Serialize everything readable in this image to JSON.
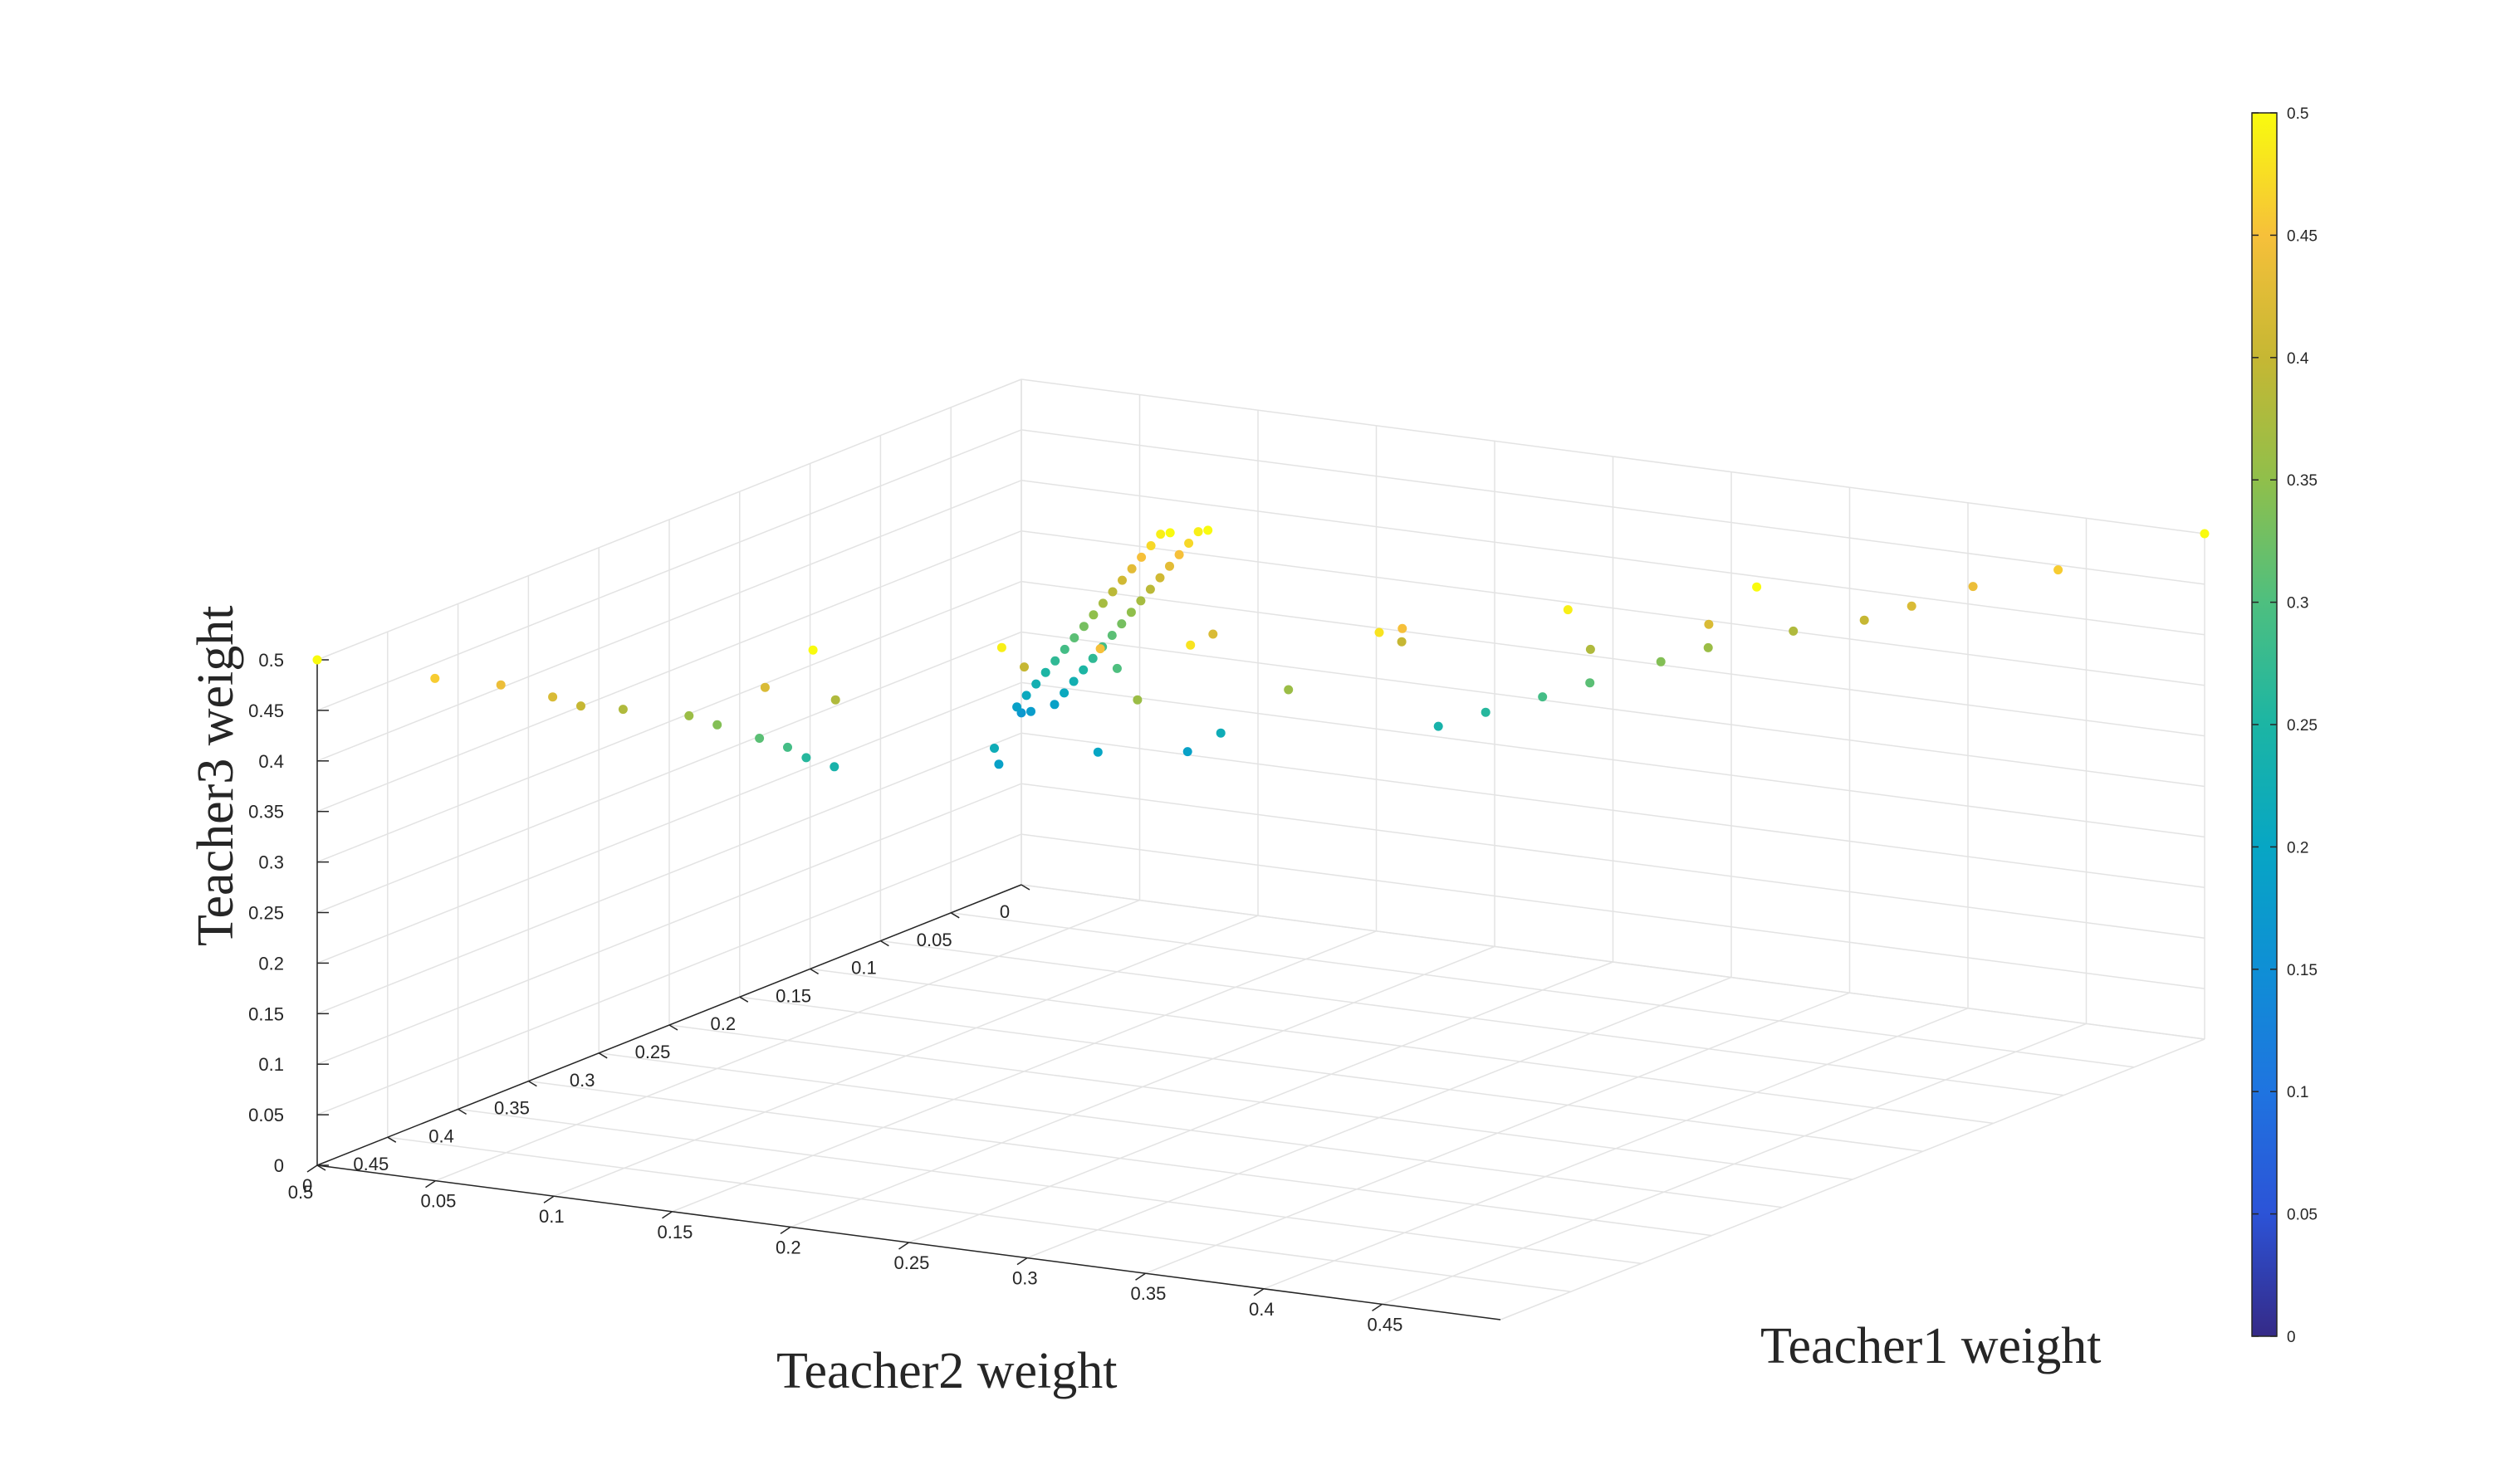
{
  "chart_data": {
    "type": "scatter3d",
    "title": "",
    "axes": {
      "x": {
        "label": "Teacher1 weight",
        "range": [
          0,
          0.5
        ],
        "ticks": [
          "0",
          "0.05",
          "0.1",
          "0.15",
          "0.2",
          "0.25",
          "0.3",
          "0.35",
          "0.4",
          "0.45"
        ]
      },
      "y": {
        "label": "Teacher2 weight",
        "range": [
          0,
          0.5
        ],
        "ticks": [
          "0",
          "0.05",
          "0.1",
          "0.15",
          "0.2",
          "0.25",
          "0.3",
          "0.35",
          "0.4",
          "0.45",
          "0.5"
        ]
      },
      "z": {
        "label": "Teacher3 weight",
        "range": [
          0,
          0.5
        ],
        "ticks": [
          "0",
          "0.05",
          "0.1",
          "0.15",
          "0.2",
          "0.25",
          "0.3",
          "0.35",
          "0.4",
          "0.45",
          "0.5"
        ]
      }
    },
    "grid": true,
    "colormap": "parula",
    "colorbar": {
      "placement": "right",
      "range": [
        0,
        0.5
      ],
      "ticks": [
        "0",
        "0.05",
        "0.1",
        "0.15",
        "0.2",
        "0.25",
        "0.3",
        "0.35",
        "0.4",
        "0.45",
        "0.5"
      ]
    },
    "series": [
      {
        "points": [
          [
            0.5,
            0,
            0.5
          ],
          [
            0,
            0.5,
            0.5
          ],
          [
            0,
            0,
            0.17
          ],
          [
            0.01,
            0.01,
            0.18
          ],
          [
            0.02,
            0.01,
            0.19
          ],
          [
            0.01,
            0.02,
            0.19
          ],
          [
            0.03,
            0.02,
            0.21
          ],
          [
            0.02,
            0.03,
            0.21
          ],
          [
            0.04,
            0.03,
            0.23
          ],
          [
            0.03,
            0.04,
            0.23
          ],
          [
            0.05,
            0.04,
            0.25
          ],
          [
            0.04,
            0.05,
            0.25
          ],
          [
            0.06,
            0.05,
            0.27
          ],
          [
            0.05,
            0.06,
            0.27
          ],
          [
            0.07,
            0.06,
            0.29
          ],
          [
            0.06,
            0.07,
            0.29
          ],
          [
            0.08,
            0.07,
            0.31
          ],
          [
            0.07,
            0.08,
            0.31
          ],
          [
            0.09,
            0.08,
            0.33
          ],
          [
            0.08,
            0.09,
            0.33
          ],
          [
            0.1,
            0.09,
            0.35
          ],
          [
            0.09,
            0.1,
            0.35
          ],
          [
            0.11,
            0.1,
            0.37
          ],
          [
            0.1,
            0.11,
            0.37
          ],
          [
            0.12,
            0.11,
            0.39
          ],
          [
            0.11,
            0.12,
            0.39
          ],
          [
            0.13,
            0.12,
            0.41
          ],
          [
            0.12,
            0.13,
            0.41
          ],
          [
            0.14,
            0.13,
            0.43
          ],
          [
            0.13,
            0.14,
            0.43
          ],
          [
            0.15,
            0.14,
            0.45
          ],
          [
            0.14,
            0.15,
            0.45
          ],
          [
            0.16,
            0.15,
            0.47
          ],
          [
            0.15,
            0.16,
            0.47
          ],
          [
            0.17,
            0.16,
            0.49
          ],
          [
            0.16,
            0.17,
            0.49
          ],
          [
            0.18,
            0.17,
            0.5
          ],
          [
            0.17,
            0.18,
            0.5
          ],
          [
            0.45,
            0.02,
            0.46
          ],
          [
            0.02,
            0.45,
            0.46
          ],
          [
            0.42,
            0.03,
            0.44
          ],
          [
            0.03,
            0.42,
            0.44
          ],
          [
            0.4,
            0.04,
            0.42
          ],
          [
            0.04,
            0.4,
            0.42
          ],
          [
            0.38,
            0.04,
            0.4
          ],
          [
            0.04,
            0.38,
            0.4
          ],
          [
            0.35,
            0.04,
            0.38
          ],
          [
            0.04,
            0.35,
            0.38
          ],
          [
            0.32,
            0.05,
            0.36
          ],
          [
            0.05,
            0.32,
            0.36
          ],
          [
            0.3,
            0.05,
            0.34
          ],
          [
            0.05,
            0.3,
            0.34
          ],
          [
            0.27,
            0.05,
            0.31
          ],
          [
            0.05,
            0.27,
            0.31
          ],
          [
            0.25,
            0.05,
            0.29
          ],
          [
            0.05,
            0.25,
            0.29
          ],
          [
            0.22,
            0.04,
            0.26
          ],
          [
            0.04,
            0.22,
            0.26
          ],
          [
            0.2,
            0.04,
            0.24
          ],
          [
            0.04,
            0.2,
            0.24
          ],
          [
            0.3,
            0.25,
            0.48
          ],
          [
            0.25,
            0.3,
            0.48
          ],
          [
            0.35,
            0.2,
            0.49
          ],
          [
            0.2,
            0.35,
            0.49
          ],
          [
            0.4,
            0.15,
            0.5
          ],
          [
            0.15,
            0.4,
            0.5
          ],
          [
            0.1,
            0.1,
            0.3
          ],
          [
            0.2,
            0.2,
            0.42
          ],
          [
            0.25,
            0.15,
            0.4
          ],
          [
            0.15,
            0.25,
            0.4
          ],
          [
            0.3,
            0.1,
            0.38
          ],
          [
            0.1,
            0.3,
            0.38
          ],
          [
            0.35,
            0.1,
            0.42
          ],
          [
            0.1,
            0.35,
            0.42
          ],
          [
            0.12,
            0.06,
            0.22
          ],
          [
            0.06,
            0.12,
            0.22
          ],
          [
            0.08,
            0.08,
            0.2
          ],
          [
            0.05,
            0.1,
            0.19
          ],
          [
            0.1,
            0.05,
            0.19
          ],
          [
            0.22,
            0.18,
            0.36
          ],
          [
            0.18,
            0.22,
            0.36
          ],
          [
            0.28,
            0.2,
            0.45
          ],
          [
            0.2,
            0.28,
            0.45
          ]
        ]
      }
    ]
  }
}
